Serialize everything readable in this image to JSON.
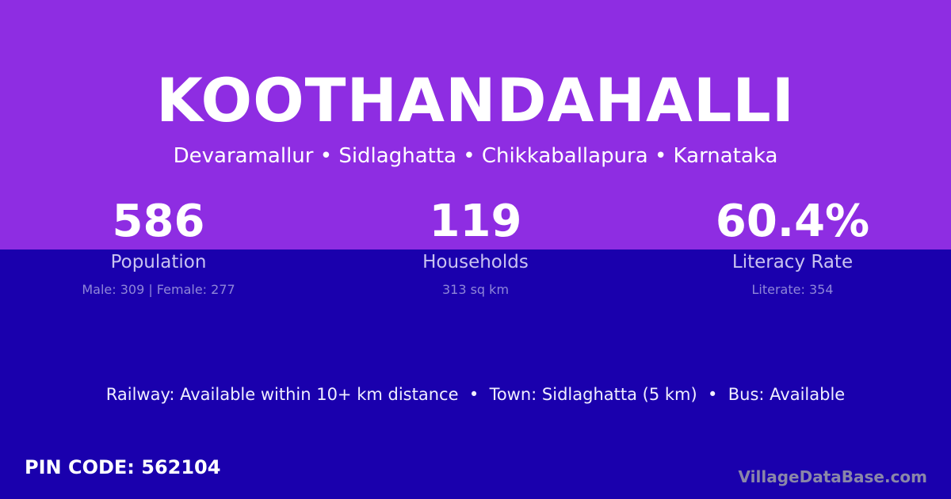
{
  "village_name": "KOOTHANDAHALLI",
  "location": "Devaramallur • Sidlaghatta • Chikkaballapura • Karnataka",
  "stats": [
    {
      "value": "586",
      "label": "Population",
      "detail": "Male: 309 | Female: 277"
    },
    {
      "value": "119",
      "label": "Households",
      "detail": "313 sq km"
    },
    {
      "value": "60.4%",
      "label": "Literacy Rate",
      "detail": "Literate: 354"
    }
  ],
  "facilities": "Railway: Available within 10+ km distance  •  Town: Sidlaghatta (5 km)  •  Bus: Available",
  "pin_code": "PIN CODE: 562104",
  "brand": "VillageDataBase.com",
  "colors": {
    "top_background": "#8e2de2",
    "bottom_background": "#1a00ad"
  }
}
